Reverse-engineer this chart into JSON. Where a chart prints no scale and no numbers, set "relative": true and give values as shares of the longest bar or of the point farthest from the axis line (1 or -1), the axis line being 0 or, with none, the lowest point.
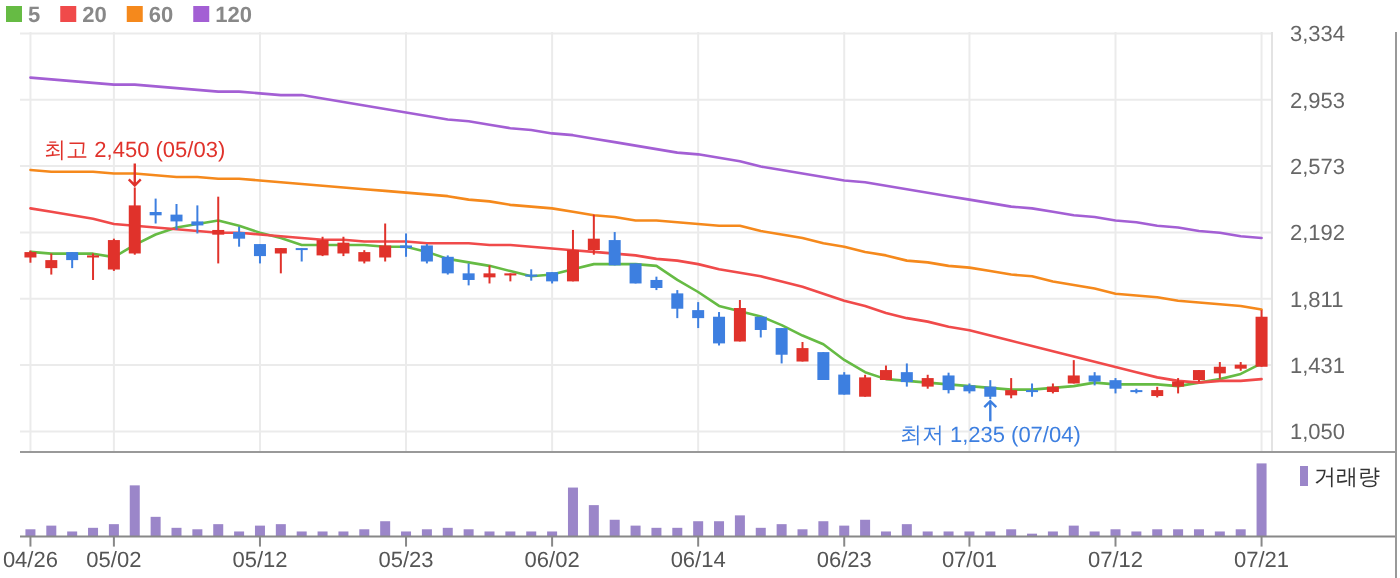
{
  "chart_data": [
    {
      "type": "candlestick",
      "categories": [
        null,
        null,
        null,
        null,
        null,
        null,
        null,
        null,
        null,
        null,
        null,
        null,
        null,
        null,
        null,
        null,
        null,
        null,
        null,
        null,
        null,
        null,
        null,
        null,
        null,
        null,
        null,
        null,
        null,
        null,
        null,
        null,
        null,
        null,
        null,
        null,
        null,
        null,
        null,
        null,
        null,
        null,
        null,
        null,
        null,
        null,
        null,
        null,
        null,
        null,
        null,
        null,
        null,
        null,
        null,
        null,
        null,
        null,
        null,
        null
      ],
      "ohlc": [
        [
          2048,
          2087,
          2018,
          2079
        ],
        [
          1987,
          2071,
          1950,
          2033
        ],
        [
          2079,
          2079,
          1987,
          2033
        ],
        [
          2048,
          2071,
          1919,
          2060
        ],
        [
          1979,
          2156,
          1971,
          2148
        ],
        [
          2071,
          2450,
          2064,
          2347
        ],
        [
          2309,
          2386,
          2243,
          2290
        ],
        [
          2294,
          2355,
          2206,
          2255
        ],
        [
          2255,
          2347,
          2186,
          2232
        ],
        [
          2179,
          2397,
          2014,
          2206
        ],
        [
          2194,
          2225,
          2110,
          2156
        ],
        [
          2125,
          2125,
          2014,
          2056
        ],
        [
          2071,
          2102,
          1957,
          2102
        ],
        [
          2102,
          2102,
          2025,
          2094
        ],
        [
          2060,
          2167,
          2056,
          2148
        ],
        [
          2071,
          2167,
          2056,
          2133
        ],
        [
          2025,
          2090,
          2014,
          2079
        ],
        [
          2048,
          2243,
          2025,
          2117
        ],
        [
          2117,
          2186,
          2052,
          2102
        ],
        [
          2117,
          2125,
          2014,
          2025
        ],
        [
          2052,
          2060,
          1950,
          1957
        ],
        [
          1957,
          2014,
          1888,
          1919
        ],
        [
          1934,
          2003,
          1899,
          1957
        ],
        [
          1945,
          1957,
          1911,
          1957
        ],
        [
          1950,
          1980,
          1915,
          1942
        ],
        [
          1964,
          1964,
          1899,
          1911
        ],
        [
          1911,
          2206,
          1911,
          2091
        ],
        [
          2091,
          2294,
          2064,
          2156
        ],
        [
          2148,
          2194,
          2003,
          2003
        ],
        [
          2014,
          2014,
          1899,
          1899
        ],
        [
          1919,
          1938,
          1861,
          1873
        ],
        [
          1842,
          1861,
          1700,
          1754
        ],
        [
          1746,
          1792,
          1643,
          1700
        ],
        [
          1708,
          1735,
          1543,
          1555
        ],
        [
          1566,
          1804,
          1566,
          1758
        ],
        [
          1708,
          1708,
          1589,
          1632
        ],
        [
          1643,
          1643,
          1440,
          1490
        ],
        [
          1451,
          1563,
          1451,
          1528
        ],
        [
          1505,
          1505,
          1345,
          1345
        ],
        [
          1376,
          1390,
          1261,
          1261
        ],
        [
          1249,
          1375,
          1249,
          1360
        ],
        [
          1345,
          1428,
          1345,
          1402
        ],
        [
          1390,
          1440,
          1307,
          1333
        ],
        [
          1307,
          1375,
          1295,
          1356
        ],
        [
          1371,
          1387,
          1268,
          1287
        ],
        [
          1314,
          1325,
          1268,
          1280
        ],
        [
          1307,
          1344,
          1235,
          1249
        ],
        [
          1257,
          1356,
          1240,
          1287
        ],
        [
          1287,
          1325,
          1249,
          1280
        ],
        [
          1276,
          1325,
          1268,
          1307
        ],
        [
          1325,
          1459,
          1325,
          1371
        ],
        [
          1371,
          1390,
          1314,
          1336
        ],
        [
          1344,
          1356,
          1268,
          1295
        ],
        [
          1287,
          1295,
          1268,
          1283
        ],
        [
          1253,
          1306,
          1245,
          1287
        ],
        [
          1307,
          1356,
          1268,
          1337
        ],
        [
          1344,
          1402,
          1333,
          1402
        ],
        [
          1383,
          1448,
          1352,
          1421
        ],
        [
          1410,
          1448,
          1398,
          1433
        ],
        [
          1421,
          1746,
          1421,
          1708
        ]
      ],
      "colors": [
        "#e0322b",
        "#e0322b",
        "#3d7fe0",
        "#e0322b",
        "#e0322b",
        "#e0322b",
        "#3d7fe0",
        "#3d7fe0",
        "#3d7fe0",
        "#e0322b",
        "#3d7fe0",
        "#3d7fe0",
        "#e0322b",
        "#3d7fe0",
        "#e0322b",
        "#e0322b",
        "#e0322b",
        "#e0322b",
        "#3d7fe0",
        "#3d7fe0",
        "#3d7fe0",
        "#3d7fe0",
        "#e0322b",
        "#e0322b",
        "#3d7fe0",
        "#3d7fe0",
        "#e0322b",
        "#e0322b",
        "#3d7fe0",
        "#3d7fe0",
        "#3d7fe0",
        "#3d7fe0",
        "#3d7fe0",
        "#3d7fe0",
        "#e0322b",
        "#3d7fe0",
        "#3d7fe0",
        "#e0322b",
        "#3d7fe0",
        "#3d7fe0",
        "#e0322b",
        "#e0322b",
        "#3d7fe0",
        "#e0322b",
        "#3d7fe0",
        "#3d7fe0",
        "#3d7fe0",
        "#e0322b",
        "#3d7fe0",
        "#e0322b",
        "#e0322b",
        "#3d7fe0",
        "#3d7fe0",
        "#3d7fe0",
        "#e0322b",
        "#e0322b",
        "#e0322b",
        "#e0322b",
        "#e0322b",
        "#e0322b"
      ],
      "series": [
        {
          "name": "5",
          "type": "line",
          "color": "#66bb44",
          "values": [
            2080,
            2070,
            2070,
            2070,
            2050,
            2120,
            2180,
            2220,
            2240,
            2260,
            2230,
            2190,
            2160,
            2120,
            2120,
            2120,
            2120,
            2110,
            2110,
            2080,
            2040,
            2020,
            2000,
            1970,
            1940,
            1950,
            1980,
            2010,
            2010,
            2010,
            2000,
            1920,
            1850,
            1770,
            1740,
            1710,
            1660,
            1600,
            1550,
            1460,
            1390,
            1350,
            1340,
            1330,
            1320,
            1310,
            1300,
            1290,
            1290,
            1300,
            1310,
            1330,
            1320,
            1320,
            1320,
            1310,
            1330,
            1350,
            1380,
            1440
          ]
        },
        {
          "name": "20",
          "type": "line",
          "color": "#f04a4a",
          "values": [
            2330,
            2310,
            2290,
            2270,
            2240,
            2230,
            2220,
            2210,
            2200,
            2190,
            2190,
            2180,
            2170,
            2160,
            2150,
            2150,
            2140,
            2140,
            2140,
            2130,
            2130,
            2130,
            2120,
            2120,
            2110,
            2100,
            2090,
            2080,
            2070,
            2060,
            2040,
            2030,
            2010,
            1980,
            1960,
            1940,
            1910,
            1880,
            1840,
            1800,
            1770,
            1730,
            1700,
            1680,
            1650,
            1630,
            1600,
            1570,
            1540,
            1510,
            1480,
            1450,
            1420,
            1390,
            1360,
            1340,
            1330,
            1340,
            1340,
            1350
          ]
        },
        {
          "name": "60",
          "type": "line",
          "color": "#f5891c",
          "values": [
            2550,
            2540,
            2540,
            2540,
            2530,
            2530,
            2520,
            2510,
            2510,
            2500,
            2500,
            2490,
            2480,
            2470,
            2460,
            2450,
            2440,
            2430,
            2420,
            2410,
            2400,
            2380,
            2370,
            2350,
            2340,
            2330,
            2310,
            2290,
            2280,
            2260,
            2260,
            2250,
            2240,
            2230,
            2230,
            2200,
            2180,
            2160,
            2130,
            2110,
            2080,
            2060,
            2030,
            2020,
            2000,
            1990,
            1970,
            1950,
            1940,
            1910,
            1890,
            1870,
            1840,
            1830,
            1820,
            1800,
            1790,
            1780,
            1770,
            1750
          ]
        },
        {
          "name": "120",
          "type": "line",
          "color": "#a35fd4",
          "values": [
            3080,
            3070,
            3060,
            3050,
            3040,
            3040,
            3030,
            3020,
            3010,
            3000,
            3000,
            2990,
            2980,
            2980,
            2960,
            2940,
            2920,
            2900,
            2880,
            2860,
            2840,
            2830,
            2810,
            2790,
            2780,
            2760,
            2750,
            2730,
            2710,
            2690,
            2670,
            2650,
            2640,
            2620,
            2600,
            2570,
            2550,
            2530,
            2510,
            2490,
            2480,
            2460,
            2440,
            2420,
            2400,
            2380,
            2360,
            2340,
            2330,
            2310,
            2290,
            2280,
            2260,
            2250,
            2230,
            2220,
            2200,
            2190,
            2170,
            2160
          ]
        }
      ],
      "ylim": [
        1050,
        3334
      ],
      "yticks": [
        {
          "value": 1050,
          "label": "1,050"
        },
        {
          "value": 1431,
          "label": "1,431"
        },
        {
          "value": 1811,
          "label": "1,811"
        },
        {
          "value": 2192,
          "label": "2,192"
        },
        {
          "value": 2573,
          "label": "2,573"
        },
        {
          "value": 2953,
          "label": "2,953"
        },
        {
          "value": 3334,
          "label": "3,334"
        }
      ],
      "grid": true,
      "legend": "top left",
      "tick_labels": "y",
      "annotations": [
        {
          "text": "최고 2,450 (05/03)",
          "y": 2450
        },
        {
          "text": "최저 1,235 (07/04)",
          "y": 1235
        }
      ]
    },
    {
      "type": "bar",
      "categories": [
        "04/26",
        null,
        null,
        null,
        "05/02",
        null,
        null,
        null,
        null,
        null,
        null,
        "05/12",
        null,
        null,
        null,
        null,
        null,
        null,
        "05/23",
        null,
        null,
        null,
        null,
        null,
        null,
        "06/02",
        null,
        null,
        null,
        null,
        null,
        null,
        "06/14",
        null,
        null,
        null,
        null,
        null,
        null,
        "06/23",
        null,
        null,
        null,
        null,
        null,
        "07/01",
        null,
        null,
        null,
        null,
        null,
        null,
        "07/12",
        null,
        null,
        null,
        null,
        null,
        null,
        "07/21"
      ],
      "relative": true,
      "series": [
        {
          "name": "거래량",
          "color": "#9b86c9",
          "values": [
            0.1,
            0.15,
            0.07,
            0.12,
            0.17,
            0.7,
            0.27,
            0.12,
            0.1,
            0.17,
            0.07,
            0.15,
            0.17,
            0.07,
            0.07,
            0.07,
            0.1,
            0.21,
            0.07,
            0.1,
            0.12,
            0.1,
            0.07,
            0.07,
            0.07,
            0.07,
            0.67,
            0.43,
            0.23,
            0.15,
            0.12,
            0.12,
            0.21,
            0.21,
            0.29,
            0.12,
            0.17,
            0.1,
            0.21,
            0.15,
            0.23,
            0.07,
            0.17,
            0.07,
            0.07,
            0.07,
            0.07,
            0.1,
            0.04,
            0.07,
            0.15,
            0.07,
            0.1,
            0.07,
            0.1,
            0.1,
            0.1,
            0.07,
            0.1,
            1
          ]
        }
      ],
      "legend": "top right",
      "tick_labels": "x"
    }
  ]
}
